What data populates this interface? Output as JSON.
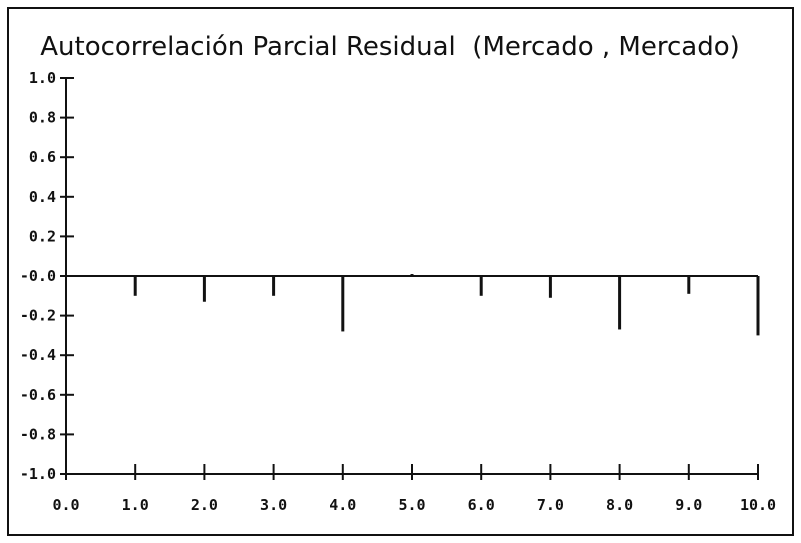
{
  "chart_data": {
    "type": "bar",
    "title": "Autocorrelación Parcial Residual  (Mercado , Mercado)",
    "xlabel": "",
    "ylabel": "",
    "xlim": [
      0,
      10
    ],
    "ylim": [
      -1,
      1
    ],
    "x_ticks": [
      0,
      1,
      2,
      3,
      4,
      5,
      6,
      7,
      8,
      9,
      10
    ],
    "x_tick_labels": [
      "0.0",
      "1.0",
      "2.0",
      "3.0",
      "4.0",
      "5.0",
      "6.0",
      "7.0",
      "8.0",
      "9.0",
      "10.0"
    ],
    "y_ticks": [
      1,
      0.8,
      0.6,
      0.4,
      0.2,
      0,
      -0.2,
      -0.4,
      -0.6,
      -0.8,
      -1
    ],
    "y_tick_labels": [
      "1.0",
      "0.8",
      "0.6",
      "0.4",
      "0.2",
      "-0.0",
      "-0.2",
      "-0.4",
      "-0.6",
      "-0.8",
      "-1.0"
    ],
    "x": [
      1,
      2,
      3,
      4,
      5,
      6,
      7,
      8,
      9,
      10
    ],
    "values": [
      -0.1,
      -0.13,
      -0.1,
      -0.28,
      0.01,
      -0.1,
      -0.11,
      -0.27,
      -0.09,
      -0.3
    ],
    "zero_line": true,
    "grid": false,
    "legend": "none",
    "line_color": "#111111"
  }
}
